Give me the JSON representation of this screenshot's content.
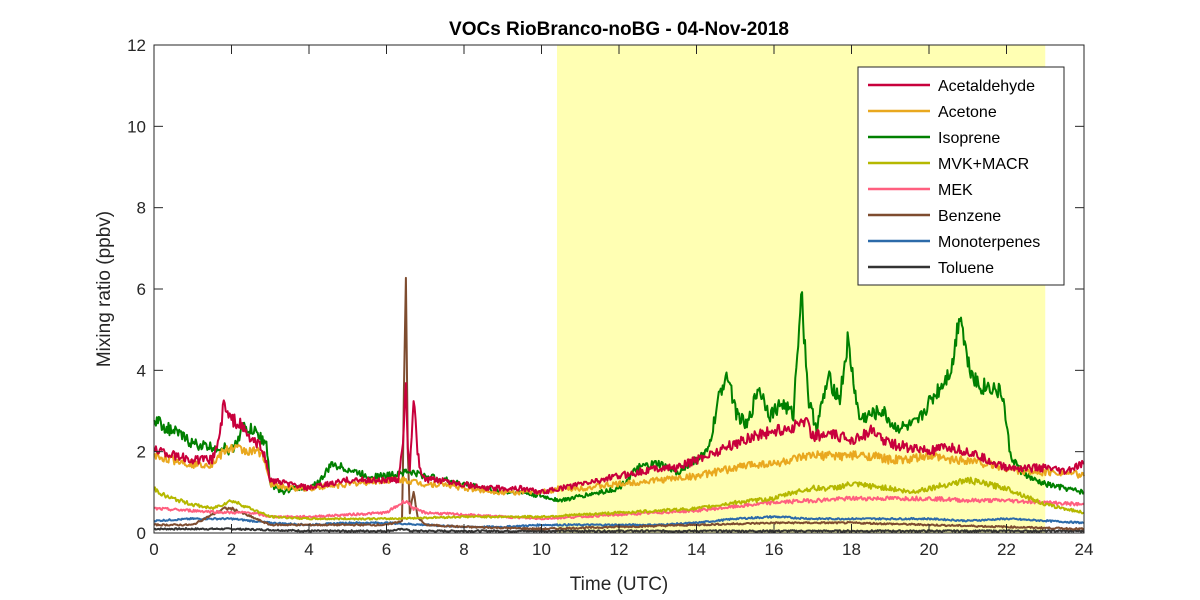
{
  "chart_data": {
    "type": "line",
    "title": "VOCs RioBranco-noBG - 04-Nov-2018",
    "xlabel": "Time (UTC)",
    "ylabel": "Mixing ratio (ppbv)",
    "xlim": [
      0,
      24
    ],
    "ylim": [
      0,
      12
    ],
    "xticks": [
      0,
      2,
      4,
      6,
      8,
      10,
      12,
      14,
      16,
      18,
      20,
      22,
      24
    ],
    "yticks": [
      0,
      2,
      4,
      6,
      8,
      10,
      12
    ],
    "grid": false,
    "legend_position": "top-right",
    "shaded_region": {
      "x_start": 10.4,
      "x_end": 23.0,
      "color": "#ffffb3"
    },
    "series": [
      {
        "name": "Acetaldehyde",
        "color": "#c8003c",
        "x": [
          0,
          0.5,
          1,
          1.5,
          1.7,
          1.8,
          1.9,
          2.0,
          2.2,
          2.5,
          2.8,
          3.0,
          3.5,
          4.0,
          4.5,
          5.0,
          5.5,
          6.0,
          6.3,
          6.45,
          6.5,
          6.55,
          6.6,
          6.7,
          6.8,
          6.9,
          7.0,
          7.5,
          8,
          8.5,
          9,
          9.5,
          10,
          10.5,
          11,
          11.5,
          12,
          12.5,
          13,
          13.5,
          14,
          14.5,
          15,
          15.5,
          16,
          16.5,
          16.8,
          17,
          17.5,
          18,
          18.5,
          19,
          19.5,
          20,
          20.5,
          21,
          21.5,
          22,
          22.5,
          23,
          23.5,
          24
        ],
        "values": [
          2.1,
          1.9,
          1.8,
          1.8,
          2.4,
          3.2,
          2.9,
          2.8,
          2.7,
          2.3,
          2.1,
          1.3,
          1.2,
          1.1,
          1.2,
          1.3,
          1.3,
          1.3,
          1.3,
          2.5,
          3.8,
          2.0,
          1.6,
          3.3,
          2.0,
          1.4,
          1.3,
          1.3,
          1.2,
          1.1,
          1.1,
          1.1,
          1.0,
          1.1,
          1.2,
          1.3,
          1.4,
          1.5,
          1.6,
          1.6,
          1.8,
          2.0,
          2.2,
          2.4,
          2.5,
          2.6,
          2.8,
          2.4,
          2.4,
          2.3,
          2.5,
          2.2,
          2.1,
          2.0,
          2.1,
          2.0,
          1.8,
          1.6,
          1.6,
          1.6,
          1.5,
          1.7
        ]
      },
      {
        "name": "Acetone",
        "color": "#e9a81f",
        "x": [
          0,
          0.5,
          1,
          1.5,
          1.8,
          2.0,
          2.5,
          2.8,
          3.0,
          3.5,
          4.0,
          5.0,
          6.0,
          6.5,
          7.0,
          7.5,
          8,
          9,
          10,
          10.5,
          11,
          12,
          13,
          14,
          14.5,
          15,
          15.5,
          16,
          16.5,
          17,
          17.5,
          18,
          18.5,
          19,
          19.5,
          20,
          20.5,
          21,
          21.5,
          22,
          22.5,
          23,
          23.5,
          24
        ],
        "values": [
          1.9,
          1.8,
          1.7,
          1.7,
          2.0,
          2.1,
          2.0,
          2.0,
          1.2,
          1.1,
          1.1,
          1.2,
          1.3,
          1.3,
          1.2,
          1.2,
          1.1,
          1.0,
          1.0,
          1.1,
          1.1,
          1.2,
          1.3,
          1.4,
          1.5,
          1.6,
          1.7,
          1.7,
          1.8,
          1.9,
          1.9,
          1.9,
          1.9,
          1.8,
          1.8,
          1.9,
          1.8,
          1.8,
          1.7,
          1.6,
          1.5,
          1.5,
          1.5,
          1.4
        ]
      },
      {
        "name": "Isoprene",
        "color": "#008000",
        "x": [
          0,
          0.3,
          0.7,
          1,
          1.5,
          1.8,
          2.0,
          2.3,
          2.6,
          2.9,
          3.0,
          3.3,
          3.6,
          4.0,
          4.3,
          4.6,
          4.9,
          5.2,
          5.5,
          6.0,
          6.4,
          6.5,
          6.6,
          7.0,
          7.5,
          8,
          8.5,
          9,
          9.5,
          10,
          10.5,
          11,
          11.5,
          12,
          12.5,
          13,
          13.5,
          14,
          14.3,
          14.6,
          14.8,
          15.0,
          15.3,
          15.6,
          15.9,
          16.2,
          16.5,
          16.7,
          16.9,
          17.1,
          17.4,
          17.7,
          17.9,
          18.2,
          18.5,
          18.8,
          19.1,
          19.4,
          19.7,
          20.0,
          20.3,
          20.6,
          20.8,
          21.0,
          21.3,
          21.6,
          21.9,
          22.1,
          22.4,
          22.7,
          23,
          23.5,
          24
        ],
        "values": [
          2.8,
          2.6,
          2.4,
          2.2,
          2.1,
          2.1,
          2.0,
          2.6,
          2.5,
          2.2,
          1.2,
          1.0,
          1.1,
          1.1,
          1.3,
          1.7,
          1.6,
          1.5,
          1.4,
          1.4,
          1.5,
          1.5,
          1.5,
          1.4,
          1.3,
          1.2,
          1.1,
          1.0,
          1.0,
          0.9,
          0.8,
          0.9,
          1.0,
          1.1,
          1.6,
          1.7,
          1.5,
          1.8,
          2.0,
          3.4,
          4.0,
          3.0,
          2.6,
          3.6,
          2.9,
          3.2,
          2.9,
          6.0,
          3.2,
          2.6,
          3.8,
          3.3,
          4.7,
          2.8,
          2.9,
          3.0,
          2.6,
          2.6,
          2.7,
          3.2,
          3.6,
          4.1,
          5.5,
          4.2,
          3.6,
          3.6,
          3.4,
          1.9,
          1.5,
          1.3,
          1.2,
          1.1,
          1.0
        ]
      },
      {
        "name": "MVK+MACR",
        "color": "#b5b800",
        "x": [
          0,
          0.3,
          1,
          1.5,
          2.0,
          2.5,
          3.0,
          4,
          6,
          8,
          10,
          11,
          12,
          13,
          14,
          15,
          16,
          16.5,
          17,
          17.5,
          18,
          18.5,
          19,
          19.5,
          20,
          20.5,
          21,
          21.5,
          22,
          22.5,
          23,
          23.5,
          24
        ],
        "values": [
          1.1,
          0.9,
          0.7,
          0.6,
          0.8,
          0.6,
          0.4,
          0.35,
          0.35,
          0.4,
          0.4,
          0.45,
          0.5,
          0.55,
          0.6,
          0.75,
          0.85,
          1.0,
          1.1,
          1.1,
          1.2,
          1.15,
          1.1,
          1.0,
          1.1,
          1.2,
          1.3,
          1.2,
          1.1,
          0.9,
          0.7,
          0.6,
          0.5
        ]
      },
      {
        "name": "MEK",
        "color": "#ff5f7f",
        "x": [
          0,
          1,
          2,
          2.5,
          3,
          4,
          5,
          6,
          6.5,
          6.7,
          7,
          8,
          9,
          10,
          11,
          12,
          13,
          14,
          15,
          15.5,
          16,
          17,
          18,
          19,
          20,
          21,
          22,
          23,
          24
        ],
        "values": [
          0.6,
          0.55,
          0.5,
          0.5,
          0.4,
          0.4,
          0.45,
          0.5,
          0.8,
          0.6,
          0.5,
          0.45,
          0.4,
          0.35,
          0.4,
          0.45,
          0.5,
          0.55,
          0.65,
          0.7,
          0.75,
          0.8,
          0.85,
          0.85,
          0.85,
          0.8,
          0.8,
          0.75,
          0.7
        ]
      },
      {
        "name": "Benzene",
        "color": "#7e4c2f",
        "x": [
          0,
          1,
          1.8,
          2.0,
          2.5,
          3,
          4,
          5,
          6,
          6.4,
          6.5,
          6.55,
          6.6,
          6.7,
          6.8,
          7,
          8,
          10,
          12,
          14,
          16,
          18,
          20,
          22,
          24
        ],
        "values": [
          0.2,
          0.2,
          0.6,
          0.6,
          0.4,
          0.2,
          0.2,
          0.2,
          0.2,
          0.3,
          6.3,
          2.0,
          0.5,
          1.0,
          0.4,
          0.2,
          0.15,
          0.1,
          0.15,
          0.2,
          0.25,
          0.25,
          0.2,
          0.15,
          0.1
        ]
      },
      {
        "name": "Monoterpenes",
        "color": "#2c6aa9",
        "x": [
          0,
          1,
          2,
          3,
          4,
          5,
          6,
          7,
          8,
          9,
          10,
          11,
          12,
          13,
          14,
          15,
          16,
          17,
          18,
          19,
          20,
          21,
          22,
          23,
          24
        ],
        "values": [
          0.3,
          0.35,
          0.35,
          0.25,
          0.2,
          0.25,
          0.25,
          0.2,
          0.15,
          0.15,
          0.2,
          0.2,
          0.2,
          0.2,
          0.25,
          0.35,
          0.4,
          0.35,
          0.35,
          0.35,
          0.35,
          0.3,
          0.35,
          0.3,
          0.25
        ]
      },
      {
        "name": "Toluene",
        "color": "#333333",
        "x": [
          0,
          2,
          4,
          6,
          6.5,
          6.6,
          7,
          8,
          10,
          12,
          14,
          16,
          18,
          20,
          22,
          24
        ],
        "values": [
          0.1,
          0.1,
          0.05,
          0.05,
          0.1,
          0.05,
          0.05,
          0.05,
          0.05,
          0.05,
          0.05,
          0.05,
          0.05,
          0.05,
          0.05,
          0.05
        ]
      }
    ]
  }
}
